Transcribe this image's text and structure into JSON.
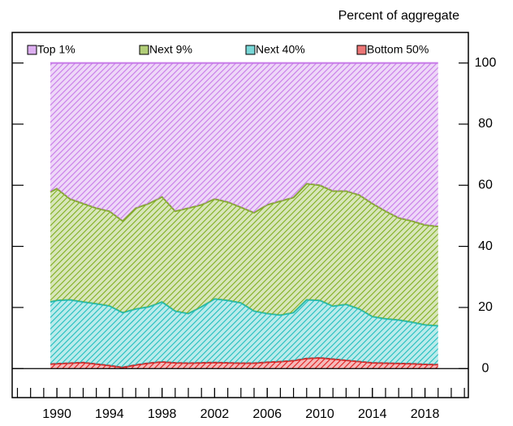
{
  "chart_data": {
    "type": "stacked-area",
    "title": "Percent of aggregate",
    "x": [
      1989.5,
      1990,
      1991,
      1992,
      1993,
      1994,
      1995,
      1996,
      1997,
      1998,
      1999,
      2000,
      2001,
      2002,
      2003,
      2004,
      2005,
      2006,
      2007,
      2008,
      2009,
      2010,
      2011,
      2012,
      2013,
      2014,
      2015,
      2016,
      2017,
      2018,
      2019
    ],
    "series": [
      {
        "name": "Bottom 50%",
        "color": "#e01b1b",
        "values": [
          1.5,
          1.6,
          1.8,
          2.0,
          1.5,
          1.0,
          0.4,
          1.2,
          1.8,
          2.2,
          1.9,
          1.8,
          1.9,
          2.0,
          1.9,
          1.8,
          1.8,
          2.1,
          2.3,
          2.6,
          3.3,
          3.5,
          3.1,
          2.7,
          2.3,
          1.9,
          1.8,
          1.7,
          1.6,
          1.4,
          1.3
        ]
      },
      {
        "name": "Next 40%",
        "color": "#1fbdbd",
        "values": [
          20.3,
          20.7,
          20.7,
          19.8,
          19.7,
          19.5,
          17.9,
          18.3,
          18.4,
          19.6,
          16.9,
          16.2,
          18.3,
          20.8,
          20.4,
          19.7,
          17.0,
          15.9,
          15.2,
          15.7,
          19.2,
          18.8,
          17.3,
          18.3,
          17.2,
          15.1,
          14.5,
          14.2,
          13.6,
          12.9,
          12.7
        ]
      },
      {
        "name": "Next 9%",
        "color": "#7fae1e",
        "values": [
          36.0,
          36.6,
          33.0,
          32.2,
          31.3,
          31.0,
          30.0,
          33.0,
          33.8,
          34.4,
          32.7,
          34.5,
          33.4,
          32.7,
          32.2,
          31.3,
          32.2,
          35.6,
          37.3,
          37.7,
          38.0,
          37.7,
          37.7,
          37.1,
          37.3,
          37.0,
          35.2,
          33.4,
          33.1,
          32.7,
          32.5
        ]
      },
      {
        "name": "Top 1%",
        "color": "#c77ae8",
        "values": [
          42.2,
          41.1,
          44.5,
          46.0,
          47.5,
          48.5,
          51.7,
          47.5,
          46.0,
          43.8,
          48.5,
          47.5,
          46.4,
          44.5,
          45.5,
          47.2,
          49.0,
          46.4,
          45.2,
          44.0,
          39.5,
          40.0,
          41.9,
          41.9,
          43.2,
          46.0,
          48.5,
          50.7,
          51.7,
          53.0,
          53.5
        ]
      }
    ],
    "xlim": [
      1986.6,
      2021.3
    ],
    "xticks": [
      1990,
      1994,
      1998,
      2002,
      2006,
      2010,
      2014,
      2018
    ],
    "ylim": [
      -9.5,
      110
    ],
    "yticks": [
      0,
      20,
      40,
      60,
      80,
      100
    ],
    "legend": "top",
    "hatch": true
  }
}
